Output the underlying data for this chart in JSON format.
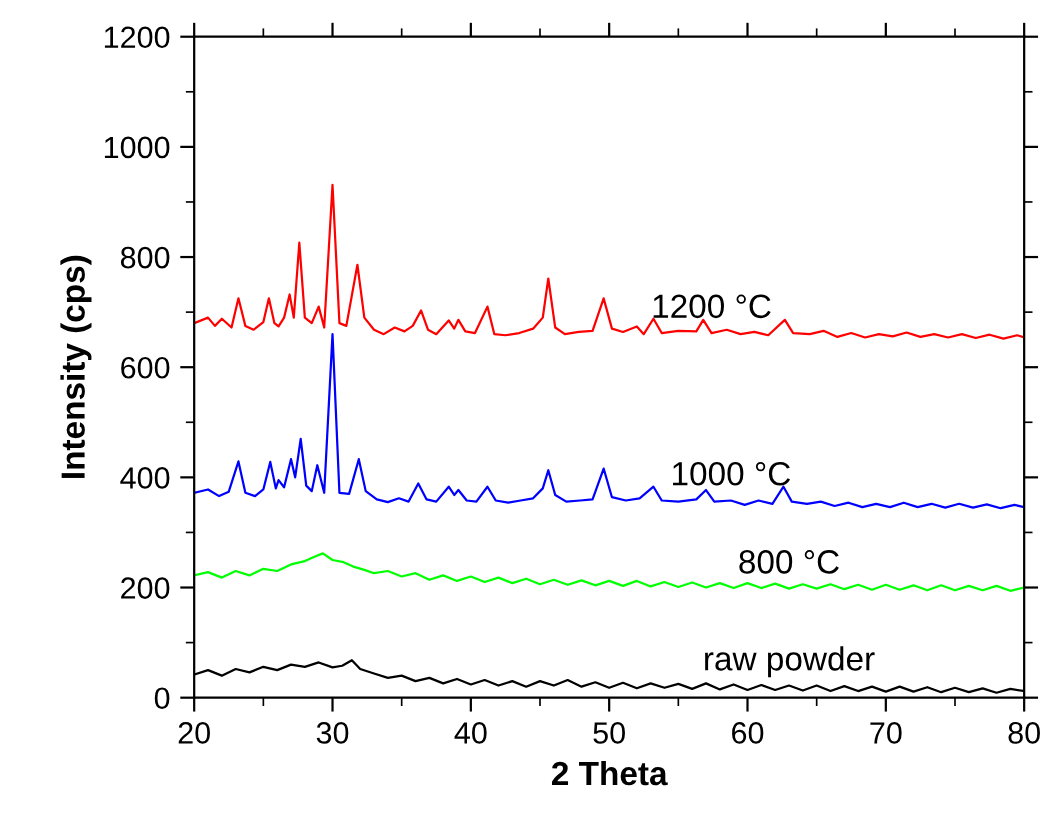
{
  "chart_data": {
    "type": "line",
    "xlabel": "2 Theta",
    "ylabel": "Intensity (cps)",
    "xlim": [
      20,
      80
    ],
    "ylim": [
      0,
      1200
    ],
    "xticks": [
      20,
      30,
      40,
      50,
      60,
      70,
      80
    ],
    "yticks": [
      0,
      200,
      400,
      600,
      800,
      1000,
      1200
    ],
    "grid": false,
    "legend": false,
    "marker": "none",
    "line_style": "solid",
    "series": [
      {
        "name": "1200 °C",
        "color": "#ff0000",
        "x": [
          20,
          21,
          21.5,
          22,
          22.7,
          23.2,
          23.7,
          24.3,
          25,
          25.4,
          25.8,
          26.1,
          26.5,
          26.9,
          27.2,
          27.6,
          28,
          28.5,
          29,
          29.4,
          30,
          30.5,
          31,
          31.8,
          32.3,
          33,
          33.7,
          34.5,
          35.2,
          35.8,
          36.4,
          36.9,
          37.5,
          38.4,
          38.8,
          39.1,
          39.6,
          40.3,
          41.2,
          41.7,
          42.5,
          43.5,
          44.5,
          45.2,
          45.6,
          46.1,
          46.8,
          47.8,
          48.8,
          49.6,
          50.2,
          51,
          52,
          52.5,
          53.2,
          53.8,
          55,
          56.3,
          56.8,
          57.4,
          58.5,
          59.5,
          60.5,
          61.5,
          62.7,
          63.3,
          64.5,
          65.5,
          66.5,
          67.5,
          68.5,
          69.5,
          70.5,
          71.5,
          72.5,
          73.5,
          74.5,
          75.5,
          76.5,
          77.5,
          78.5,
          79.5,
          80
        ],
        "values": [
          680,
          690,
          675,
          688,
          672,
          725,
          675,
          668,
          682,
          725,
          680,
          674,
          690,
          732,
          690,
          826,
          690,
          680,
          710,
          672,
          931,
          680,
          675,
          786,
          690,
          668,
          660,
          672,
          665,
          675,
          703,
          668,
          660,
          685,
          670,
          686,
          665,
          662,
          710,
          660,
          658,
          662,
          670,
          690,
          761,
          672,
          660,
          664,
          666,
          725,
          670,
          664,
          674,
          660,
          688,
          662,
          666,
          665,
          686,
          662,
          668,
          660,
          664,
          658,
          686,
          662,
          660,
          666,
          655,
          662,
          654,
          660,
          656,
          663,
          655,
          660,
          654,
          660,
          653,
          659,
          652,
          658,
          654
        ]
      },
      {
        "name": "1000 °C",
        "color": "#0000ff",
        "x": [
          20,
          21,
          21.8,
          22.5,
          23.2,
          23.7,
          24.4,
          25,
          25.5,
          25.9,
          26.1,
          26.5,
          27,
          27.3,
          27.7,
          28.1,
          28.5,
          28.9,
          29.4,
          30,
          30.5,
          31.2,
          31.9,
          32.4,
          33.2,
          34,
          34.8,
          35.5,
          36.2,
          36.8,
          37.5,
          38.4,
          38.8,
          39.1,
          39.7,
          40.4,
          41.2,
          41.8,
          42.7,
          43.6,
          44.5,
          45.2,
          45.6,
          46.1,
          46.9,
          47.9,
          48.8,
          49.6,
          50.2,
          51.2,
          52.2,
          53.2,
          53.8,
          55,
          56.3,
          57,
          57.6,
          58.8,
          59.8,
          60.8,
          61.8,
          62.6,
          63.2,
          64.3,
          65.3,
          66.3,
          67.3,
          68.3,
          69.3,
          70.3,
          71.3,
          72.3,
          73.3,
          74.3,
          75.3,
          76.3,
          77.3,
          78.3,
          79.3,
          80
        ],
        "values": [
          372,
          378,
          366,
          374,
          429,
          372,
          366,
          378,
          428,
          380,
          395,
          382,
          433,
          400,
          470,
          385,
          375,
          422,
          372,
          660,
          372,
          370,
          433,
          375,
          360,
          355,
          362,
          356,
          389,
          360,
          356,
          383,
          368,
          377,
          358,
          356,
          383,
          358,
          354,
          358,
          362,
          380,
          413,
          368,
          356,
          358,
          360,
          416,
          364,
          358,
          362,
          383,
          358,
          356,
          360,
          377,
          356,
          358,
          350,
          358,
          352,
          383,
          356,
          352,
          356,
          348,
          354,
          346,
          352,
          346,
          354,
          346,
          352,
          345,
          352,
          345,
          351,
          344,
          350,
          346
        ]
      },
      {
        "name": "800 °C",
        "color": "#00ff00",
        "x": [
          20,
          21,
          22,
          23,
          24,
          25,
          26,
          27,
          28,
          28.7,
          29.3,
          30,
          30.8,
          31.5,
          32.3,
          33,
          34,
          35,
          36,
          37,
          38,
          39,
          40,
          41,
          42,
          43,
          44,
          45,
          46,
          47,
          48,
          49,
          50,
          51,
          52,
          53,
          54,
          55,
          56,
          57,
          58,
          59,
          60,
          61,
          62,
          63,
          64,
          65,
          66,
          67,
          68,
          69,
          70,
          71,
          72,
          73,
          74,
          75,
          76,
          77,
          78,
          79,
          80
        ],
        "values": [
          222,
          228,
          218,
          230,
          222,
          234,
          230,
          242,
          248,
          256,
          262,
          250,
          246,
          238,
          232,
          226,
          230,
          220,
          226,
          214,
          222,
          212,
          220,
          210,
          218,
          208,
          216,
          206,
          214,
          205,
          213,
          204,
          212,
          203,
          212,
          202,
          210,
          201,
          209,
          200,
          208,
          199,
          208,
          199,
          207,
          198,
          206,
          198,
          206,
          197,
          205,
          196,
          205,
          196,
          204,
          195,
          204,
          195,
          203,
          195,
          203,
          194,
          200
        ]
      },
      {
        "name": "raw powder",
        "color": "#000000",
        "x": [
          20,
          21,
          22,
          23,
          24,
          25,
          26,
          27,
          28,
          29,
          30,
          30.7,
          31.4,
          32,
          33,
          34,
          35,
          36,
          37,
          38,
          39,
          40,
          41,
          42,
          43,
          44,
          45,
          46,
          47,
          48,
          49,
          50,
          51,
          52,
          53,
          54,
          55,
          56,
          57,
          58,
          59,
          60,
          61,
          62,
          63,
          64,
          65,
          66,
          67,
          68,
          69,
          70,
          71,
          72,
          73,
          74,
          75,
          76,
          77,
          78,
          79,
          80
        ],
        "values": [
          42,
          50,
          40,
          52,
          46,
          56,
          50,
          60,
          56,
          64,
          55,
          58,
          68,
          52,
          44,
          36,
          40,
          30,
          36,
          26,
          34,
          24,
          32,
          22,
          30,
          20,
          30,
          22,
          32,
          20,
          28,
          18,
          27,
          17,
          26,
          18,
          25,
          16,
          26,
          15,
          24,
          14,
          23,
          14,
          22,
          13,
          22,
          12,
          21,
          12,
          20,
          11,
          20,
          11,
          19,
          10,
          18,
          10,
          17,
          9,
          16,
          12
        ]
      }
    ]
  }
}
